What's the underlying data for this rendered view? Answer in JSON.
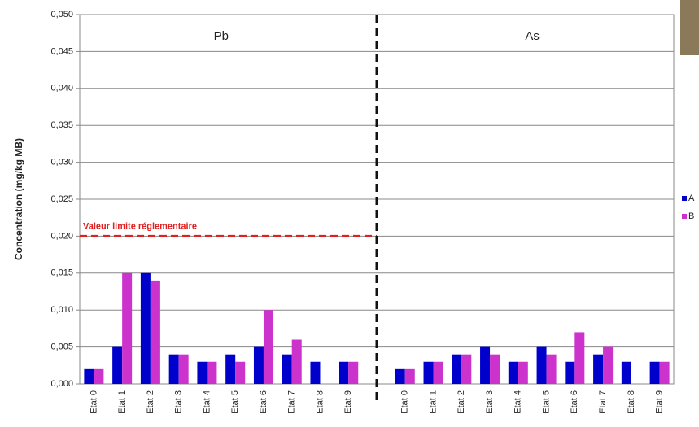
{
  "chart_data": {
    "type": "bar",
    "y_label": "Concentration (mg/kg MB)",
    "categories": [
      "Etat 0",
      "Etat 1",
      "Etat 2",
      "Etat 3",
      "Etat 4",
      "Etat 5",
      "Etat 6",
      "Etat 7",
      "Etat 8",
      "Etat 9",
      null,
      "Etat 0",
      "Etat 1",
      "Etat 2",
      "Etat 3",
      "Etat 4",
      "Etat 5",
      "Etat 6",
      "Etat 7",
      "Etat 8",
      "Etat 9"
    ],
    "series": [
      {
        "name": "A",
        "color": "#0000cc",
        "values": [
          0.002,
          0.005,
          0.015,
          0.004,
          0.003,
          0.004,
          0.005,
          0.004,
          0.003,
          0.003,
          null,
          0.002,
          0.003,
          0.004,
          0.005,
          0.003,
          0.005,
          0.003,
          0.004,
          0.003,
          0.003
        ]
      },
      {
        "name": "B",
        "color": "#cc33cc",
        "values": [
          0.002,
          0.015,
          0.014,
          0.004,
          0.003,
          0.003,
          0.01,
          0.006,
          null,
          0.003,
          null,
          0.002,
          0.003,
          0.004,
          0.004,
          0.003,
          0.004,
          0.007,
          0.005,
          null,
          0.003
        ]
      }
    ],
    "group_labels": [
      "Pb",
      "As"
    ],
    "reference_line": {
      "value": 0.02,
      "label": "Valeur limite réglementaire",
      "color": "#e02020"
    },
    "ylim": [
      0,
      0.05
    ],
    "yticks": [
      {
        "value": 0,
        "label": "0,000"
      },
      {
        "value": 0.005,
        "label": "0,005"
      },
      {
        "value": 0.01,
        "label": "0,010"
      },
      {
        "value": 0.015,
        "label": "0,015"
      },
      {
        "value": 0.02,
        "label": "0,020"
      },
      {
        "value": 0.025,
        "label": "0,025"
      },
      {
        "value": 0.03,
        "label": "0,030"
      },
      {
        "value": 0.035,
        "label": "0,035"
      },
      {
        "value": 0.04,
        "label": "0,040"
      },
      {
        "value": 0.045,
        "label": "0,045"
      },
      {
        "value": 0.05,
        "label": "0,050"
      }
    ],
    "grid": true
  }
}
